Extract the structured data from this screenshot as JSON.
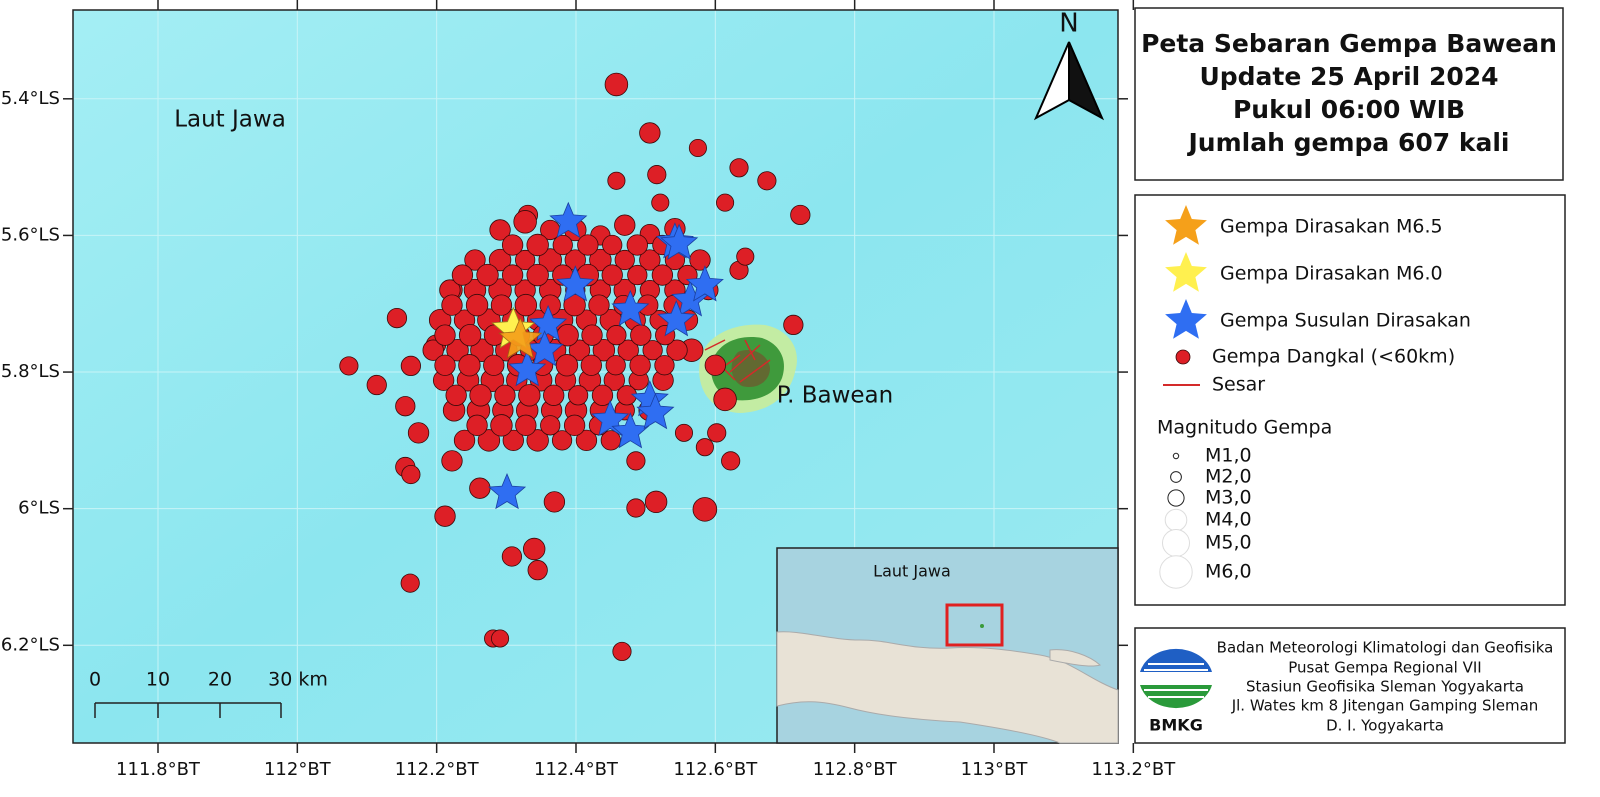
{
  "title": [
    "Peta Sebaran Gempa Bawean",
    "Update 25 April 2024",
    "Pukul 06:00 WIB",
    "Jumlah gempa 607 kali"
  ],
  "map": {
    "sea_label": "Laut Jawa",
    "island_label": "P. Bawean",
    "north": "N",
    "xlim": [
      111.678,
      113.178
    ],
    "ylim": [
      5.27,
      6.343
    ],
    "xticks": [
      {
        "value": 111.8,
        "label": "111.8°BT"
      },
      {
        "value": 112,
        "label": "112°BT"
      },
      {
        "value": 112.2,
        "label": "112.2°BT"
      },
      {
        "value": 112.4,
        "label": "112.4°BT"
      },
      {
        "value": 112.6,
        "label": "112.6°BT"
      },
      {
        "value": 112.8,
        "label": "112.8°BT"
      },
      {
        "value": 113,
        "label": "113°BT"
      },
      {
        "value": 113.2,
        "label": "113.2°BT"
      }
    ],
    "yticks": [
      {
        "value": 5.4,
        "label": "5.4°LS"
      },
      {
        "value": 5.6,
        "label": "5.6°LS"
      },
      {
        "value": 5.8,
        "label": "5.8°LS"
      },
      {
        "value": 6,
        "label": "6°LS"
      },
      {
        "value": 6.2,
        "label": "6.2°LS"
      }
    ],
    "scale_bar": [
      "0",
      "10",
      "20",
      "30 km"
    ],
    "felt_m65": [
      112.32,
      5.753
    ],
    "felt_m60": [
      112.31,
      5.738
    ],
    "aftershocks": [
      [
        112.389,
        5.58
      ],
      [
        112.542,
        5.61
      ],
      [
        112.548,
        5.612
      ],
      [
        112.399,
        5.673
      ],
      [
        112.564,
        5.695
      ],
      [
        112.585,
        5.673
      ],
      [
        112.478,
        5.709
      ],
      [
        112.36,
        5.731
      ],
      [
        112.355,
        5.768
      ],
      [
        112.33,
        5.797
      ],
      [
        112.506,
        5.841
      ],
      [
        112.449,
        5.87
      ],
      [
        112.478,
        5.888
      ],
      [
        112.301,
        5.977
      ],
      [
        112.544,
        5.724
      ],
      [
        112.514,
        5.86
      ]
    ],
    "events": [
      [
        112.458,
        5.379,
        4.2
      ],
      [
        112.506,
        5.45,
        3.8
      ],
      [
        112.575,
        5.472,
        3.2
      ],
      [
        112.516,
        5.511,
        3.4
      ],
      [
        112.458,
        5.52,
        3.2
      ],
      [
        112.634,
        5.501,
        3.4
      ],
      [
        112.674,
        5.52,
        3.4
      ],
      [
        112.614,
        5.552,
        3.2
      ],
      [
        112.722,
        5.57,
        3.6
      ],
      [
        112.521,
        5.552,
        3.2
      ],
      [
        112.331,
        5.57,
        3.6
      ],
      [
        112.074,
        5.791,
        3.4
      ],
      [
        112.114,
        5.819,
        3.6
      ],
      [
        112.143,
        5.721,
        3.6
      ],
      [
        112.163,
        5.791,
        3.6
      ],
      [
        112.155,
        5.85,
        3.6
      ],
      [
        112.174,
        5.889,
        3.8
      ],
      [
        112.155,
        5.939,
        3.6
      ],
      [
        112.163,
        5.95,
        3.4
      ],
      [
        112.212,
        6.011,
        3.8
      ],
      [
        112.162,
        6.109,
        3.4
      ],
      [
        112.281,
        6.19,
        3.2
      ],
      [
        112.291,
        6.19,
        3.2
      ],
      [
        112.466,
        6.209,
        3.4
      ],
      [
        112.585,
        6.001,
        4.4
      ],
      [
        112.515,
        5.99,
        4
      ],
      [
        112.486,
        5.999,
        3.4
      ],
      [
        112.34,
        6.059,
        4
      ],
      [
        112.308,
        6.07,
        3.6
      ],
      [
        112.345,
        6.09,
        3.6
      ],
      [
        112.369,
        5.99,
        3.8
      ],
      [
        112.262,
        5.97,
        3.8
      ],
      [
        112.222,
        5.93,
        3.8
      ],
      [
        112.199,
        5.76,
        3.6
      ],
      [
        112.222,
        5.68,
        3.8
      ],
      [
        112.486,
        5.93,
        3.4
      ],
      [
        112.555,
        5.889,
        3.2
      ],
      [
        112.602,
        5.889,
        3.4
      ],
      [
        112.585,
        5.91,
        3.2
      ],
      [
        112.622,
        5.93,
        3.4
      ],
      [
        112.614,
        5.84,
        4.2
      ],
      [
        112.634,
        5.651,
        3.4
      ],
      [
        112.643,
        5.631,
        3.2
      ],
      [
        112.712,
        5.731,
        3.6
      ],
      [
        112.566,
        5.768,
        4.2
      ],
      [
        112.291,
        5.592,
        3.8
      ],
      [
        112.327,
        5.58,
        4.2
      ],
      [
        112.363,
        5.592,
        3.6
      ],
      [
        112.399,
        5.592,
        4
      ],
      [
        112.435,
        5.6,
        3.6
      ],
      [
        112.47,
        5.585,
        3.8
      ],
      [
        112.506,
        5.598,
        3.6
      ],
      [
        112.542,
        5.59,
        3.8
      ],
      [
        112.255,
        5.636,
        3.8
      ],
      [
        112.291,
        5.636,
        4
      ],
      [
        112.327,
        5.636,
        3.6
      ],
      [
        112.363,
        5.636,
        4.2
      ],
      [
        112.399,
        5.636,
        3.8
      ],
      [
        112.435,
        5.636,
        4
      ],
      [
        112.47,
        5.636,
        3.6
      ],
      [
        112.506,
        5.636,
        3.8
      ],
      [
        112.542,
        5.636,
        3.6
      ],
      [
        112.578,
        5.636,
        3.8
      ],
      [
        112.219,
        5.68,
        3.8
      ],
      [
        112.255,
        5.68,
        4
      ],
      [
        112.291,
        5.68,
        4.2
      ],
      [
        112.327,
        5.68,
        3.8
      ],
      [
        112.363,
        5.68,
        4
      ],
      [
        112.399,
        5.68,
        3.6
      ],
      [
        112.435,
        5.68,
        3.8
      ],
      [
        112.47,
        5.68,
        4
      ],
      [
        112.506,
        5.68,
        3.6
      ],
      [
        112.542,
        5.68,
        3.8
      ],
      [
        112.59,
        5.68,
        3.6
      ],
      [
        112.205,
        5.724,
        4
      ],
      [
        112.24,
        5.724,
        3.8
      ],
      [
        112.275,
        5.724,
        4.2
      ],
      [
        112.31,
        5.724,
        4
      ],
      [
        112.345,
        5.724,
        3.8
      ],
      [
        112.38,
        5.724,
        4
      ],
      [
        112.415,
        5.724,
        3.8
      ],
      [
        112.45,
        5.724,
        4
      ],
      [
        112.485,
        5.724,
        3.8
      ],
      [
        112.52,
        5.724,
        3.6
      ],
      [
        112.56,
        5.724,
        3.8
      ],
      [
        112.195,
        5.768,
        3.8
      ],
      [
        112.23,
        5.768,
        4
      ],
      [
        112.265,
        5.768,
        4.2
      ],
      [
        112.3,
        5.768,
        4
      ],
      [
        112.335,
        5.768,
        3.8
      ],
      [
        112.37,
        5.768,
        4
      ],
      [
        112.405,
        5.768,
        3.8
      ],
      [
        112.44,
        5.768,
        4
      ],
      [
        112.475,
        5.768,
        3.8
      ],
      [
        112.51,
        5.768,
        3.6
      ],
      [
        112.545,
        5.768,
        3.8
      ],
      [
        112.21,
        5.812,
        3.8
      ],
      [
        112.245,
        5.812,
        4
      ],
      [
        112.28,
        5.812,
        4.2
      ],
      [
        112.315,
        5.812,
        3.8
      ],
      [
        112.35,
        5.812,
        4
      ],
      [
        112.385,
        5.812,
        3.8
      ],
      [
        112.42,
        5.812,
        4
      ],
      [
        112.455,
        5.812,
        3.8
      ],
      [
        112.49,
        5.812,
        3.6
      ],
      [
        112.525,
        5.812,
        3.8
      ],
      [
        112.225,
        5.856,
        4
      ],
      [
        112.26,
        5.856,
        4.2
      ],
      [
        112.295,
        5.856,
        3.8
      ],
      [
        112.33,
        5.856,
        4
      ],
      [
        112.365,
        5.856,
        3.8
      ],
      [
        112.4,
        5.856,
        4
      ],
      [
        112.435,
        5.856,
        3.8
      ],
      [
        112.47,
        5.856,
        3.6
      ],
      [
        112.505,
        5.856,
        3.8
      ],
      [
        112.24,
        5.9,
        3.8
      ],
      [
        112.275,
        5.9,
        4
      ],
      [
        112.31,
        5.9,
        3.8
      ],
      [
        112.345,
        5.9,
        4
      ],
      [
        112.38,
        5.9,
        3.6
      ],
      [
        112.415,
        5.9,
        3.8
      ],
      [
        112.45,
        5.9,
        3.6
      ],
      [
        112.309,
        5.614,
        3.8
      ],
      [
        112.345,
        5.614,
        4
      ],
      [
        112.381,
        5.614,
        3.6
      ],
      [
        112.417,
        5.614,
        3.8
      ],
      [
        112.452,
        5.614,
        3.6
      ],
      [
        112.488,
        5.614,
        3.8
      ],
      [
        112.524,
        5.614,
        3.6
      ],
      [
        112.237,
        5.658,
        3.8
      ],
      [
        112.273,
        5.658,
        4
      ],
      [
        112.309,
        5.658,
        3.8
      ],
      [
        112.345,
        5.658,
        4
      ],
      [
        112.381,
        5.658,
        3.8
      ],
      [
        112.417,
        5.658,
        4
      ],
      [
        112.452,
        5.658,
        3.8
      ],
      [
        112.488,
        5.658,
        3.6
      ],
      [
        112.524,
        5.658,
        3.8
      ],
      [
        112.56,
        5.658,
        3.6
      ],
      [
        112.222,
        5.702,
        3.8
      ],
      [
        112.258,
        5.702,
        4
      ],
      [
        112.293,
        5.702,
        3.8
      ],
      [
        112.328,
        5.702,
        4
      ],
      [
        112.363,
        5.702,
        3.8
      ],
      [
        112.398,
        5.702,
        4
      ],
      [
        112.433,
        5.702,
        3.8
      ],
      [
        112.468,
        5.702,
        3.6
      ],
      [
        112.503,
        5.702,
        3.8
      ],
      [
        112.54,
        5.702,
        3.6
      ],
      [
        112.212,
        5.746,
        3.8
      ],
      [
        112.248,
        5.746,
        4
      ],
      [
        112.283,
        5.746,
        3.8
      ],
      [
        112.318,
        5.746,
        4
      ],
      [
        112.353,
        5.746,
        3.8
      ],
      [
        112.388,
        5.746,
        4
      ],
      [
        112.423,
        5.746,
        3.8
      ],
      [
        112.458,
        5.746,
        3.6
      ],
      [
        112.493,
        5.746,
        3.8
      ],
      [
        112.528,
        5.746,
        3.6
      ],
      [
        112.212,
        5.79,
        3.8
      ],
      [
        112.247,
        5.79,
        4
      ],
      [
        112.282,
        5.79,
        3.8
      ],
      [
        112.317,
        5.79,
        4
      ],
      [
        112.352,
        5.79,
        3.8
      ],
      [
        112.387,
        5.79,
        4
      ],
      [
        112.422,
        5.79,
        3.8
      ],
      [
        112.457,
        5.79,
        3.6
      ],
      [
        112.492,
        5.79,
        3.8
      ],
      [
        112.527,
        5.79,
        3.6
      ],
      [
        112.6,
        5.79,
        3.8
      ],
      [
        112.228,
        5.834,
        3.8
      ],
      [
        112.263,
        5.834,
        4
      ],
      [
        112.298,
        5.834,
        3.8
      ],
      [
        112.333,
        5.834,
        4
      ],
      [
        112.368,
        5.834,
        3.8
      ],
      [
        112.403,
        5.834,
        3.6
      ],
      [
        112.438,
        5.834,
        3.8
      ],
      [
        112.473,
        5.834,
        3.6
      ],
      [
        112.258,
        5.878,
        3.8
      ],
      [
        112.293,
        5.878,
        4
      ],
      [
        112.328,
        5.878,
        3.8
      ],
      [
        112.363,
        5.878,
        3.6
      ],
      [
        112.398,
        5.878,
        3.8
      ],
      [
        112.433,
        5.878,
        3.6
      ]
    ]
  },
  "legend": {
    "items": [
      {
        "label": "Gempa Dirasakan M6.5",
        "color": "#f5a01a"
      },
      {
        "label": "Gempa Dirasakan M6.0",
        "color": "#fff04f"
      },
      {
        "label": "Gempa Susulan Dirasakan",
        "color": "#2f6ef2"
      },
      {
        "label": "Gempa Dangkal (<60km)",
        "color": "#dd1f26"
      },
      {
        "label": "Sesar",
        "color": "#d42a2a"
      }
    ],
    "magnitude_title": "Magnitudo Gempa",
    "magnitudes": [
      {
        "value": 1,
        "label": "M1,0"
      },
      {
        "value": 2,
        "label": "M2,0"
      },
      {
        "value": 3,
        "label": "M3,0"
      },
      {
        "value": 4,
        "label": "M4,0"
      },
      {
        "value": 5,
        "label": "M5,0"
      },
      {
        "value": 6,
        "label": "M6,0"
      }
    ]
  },
  "inset": {
    "label": "Laut Jawa"
  },
  "agency": {
    "logo": "BMKG",
    "lines": [
      "Badan Meteorologi Klimatologi dan Geofisika",
      "Pusat Gempa Regional VII",
      "Stasiun Geofisika Sleman Yogyakarta",
      "Jl. Wates km 8 Jitengan Gamping Sleman",
      "D. I. Yogyakarta"
    ]
  }
}
